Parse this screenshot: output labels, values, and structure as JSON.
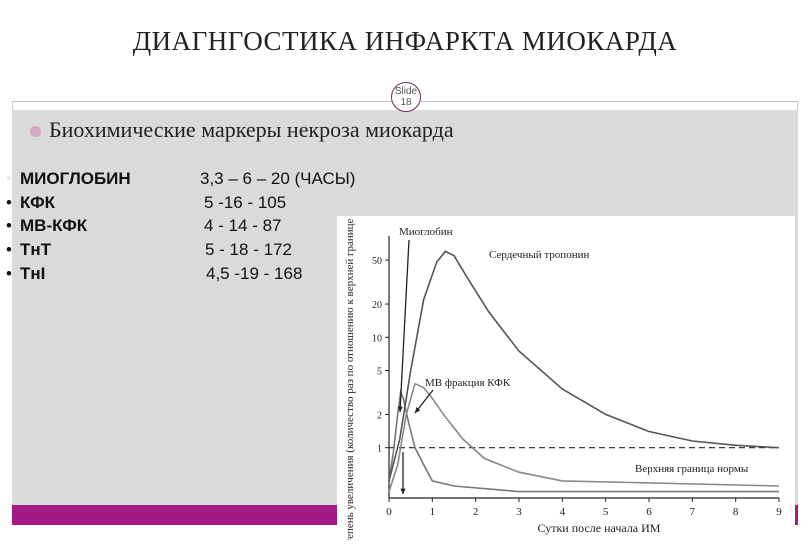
{
  "slide": {
    "title": "ДИАГНГОСТИКА ИНФАРКТА МИОКАРДА",
    "badge": {
      "line1": "Slide",
      "line2": "18"
    },
    "subtitle": "Биохимические маркеры некроза миокарда",
    "colors": {
      "accent_bar": "#a31a86",
      "content_bg": "#dadada",
      "bullet": "#d6a6c6"
    }
  },
  "markers": [
    {
      "name": "МИОГЛОБИН",
      "values": "3,3 – 6 – 20 (ЧАСЫ)"
    },
    {
      "name": "КФК",
      "values": "5 -16 - 105"
    },
    {
      "name": "МВ-КФК",
      "values": "4 - 14 - 87"
    },
    {
      "name": "ТнТ",
      "values": "5 - 18 - 172"
    },
    {
      "name": "ТнI",
      "values": "4,5 -19 - 168"
    }
  ],
  "chart_data": {
    "type": "line",
    "xlabel": "Сутки после начала ИМ",
    "ylabel": "Степень увеличения (количество раз по отношению к верхней границе нормы)",
    "x_ticks": [
      "0",
      "1",
      "2",
      "3",
      "4",
      "5",
      "6",
      "7",
      "8",
      "9"
    ],
    "y_ticks": [
      "1",
      "2",
      "5",
      "10",
      "20",
      "50"
    ],
    "xlim": [
      0,
      9
    ],
    "y_scale": "log",
    "reference_line": {
      "label": "Верхняя граница нормы",
      "value": 1
    },
    "annotations": [
      "Миоглобин",
      "Сердечный тропонин",
      "МВ фракция КФК"
    ],
    "series": [
      {
        "name": "Миоглобин",
        "x": [
          0,
          0.1,
          0.2,
          0.27,
          0.33,
          0.45,
          0.6,
          0.8,
          1.0,
          1.5,
          3.0,
          9.0
        ],
        "y": [
          0.5,
          0.9,
          2.0,
          3.2,
          2.8,
          1.7,
          1.0,
          0.7,
          0.5,
          0.45,
          0.4,
          0.4
        ]
      },
      {
        "name": "МВ фракция КФК",
        "x": [
          0,
          0.2,
          0.4,
          0.6,
          0.8,
          1.0,
          1.3,
          1.7,
          2.2,
          3.0,
          4.0,
          9.0
        ],
        "y": [
          0.4,
          0.7,
          2.0,
          3.8,
          3.5,
          2.8,
          1.9,
          1.2,
          0.8,
          0.6,
          0.5,
          0.45
        ]
      },
      {
        "name": "Сердечный тропонин",
        "x": [
          0,
          0.25,
          0.5,
          0.8,
          1.1,
          1.3,
          1.5,
          1.8,
          2.3,
          3.0,
          4.0,
          5.0,
          6.0,
          7.0,
          8.0,
          9.0
        ],
        "y": [
          0.5,
          1.2,
          5.0,
          22,
          48,
          60,
          55,
          35,
          17,
          7.5,
          3.4,
          2.0,
          1.4,
          1.15,
          1.05,
          1.0
        ]
      }
    ]
  }
}
